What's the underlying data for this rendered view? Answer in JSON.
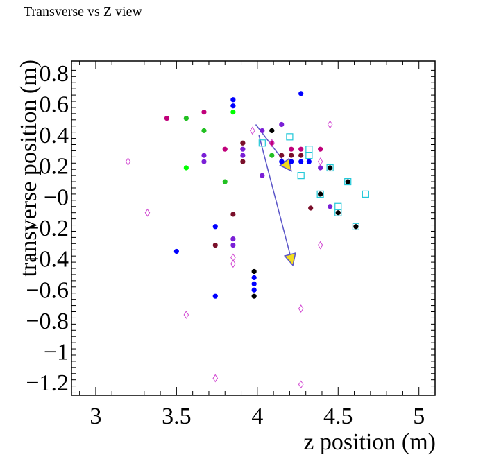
{
  "title": "Transverse vs Z view",
  "colors": {
    "frame": "#000000",
    "arrow": "#5b55c8",
    "arrow_head": "#f2dc1c",
    "hollow_diamond": "#d24ad2",
    "hollow_square": "#22c8d8"
  },
  "chart_data": {
    "type": "scatter",
    "title": "Transverse vs Z view",
    "xlabel": "z position (m)",
    "ylabel": "transverse position (m)",
    "xlim": [
      2.85,
      5.1
    ],
    "ylim": [
      -1.28,
      0.88
    ],
    "xticks": [
      3,
      3.5,
      4,
      4.5,
      5
    ],
    "xtick_labels": [
      "3",
      "3.5",
      "4",
      "4.5",
      "5"
    ],
    "yticks": [
      0.8,
      0.6,
      0.4,
      0.2,
      0,
      -0.2,
      -0.4,
      -0.6,
      -0.8,
      -1,
      -1.2
    ],
    "ytick_labels": [
      "0.8",
      "0.6",
      "0.4",
      "0.2",
      "−0",
      "−0.2",
      "−0.4",
      "−0.6",
      "−0.8",
      "−1",
      "−1.2"
    ],
    "grid": false,
    "series": [
      {
        "marker": "filled-circle",
        "color": "#0000ff",
        "points": [
          [
            3.85,
            0.63
          ],
          [
            3.85,
            0.59
          ],
          [
            4.27,
            0.67
          ],
          [
            3.74,
            -0.19
          ],
          [
            3.5,
            -0.35
          ],
          [
            3.98,
            -0.52
          ],
          [
            3.98,
            -0.56
          ],
          [
            3.98,
            -0.6
          ],
          [
            3.74,
            -0.64
          ],
          [
            4.15,
            0.23
          ],
          [
            4.21,
            0.23
          ],
          [
            4.27,
            0.23
          ],
          [
            4.32,
            0.23
          ]
        ]
      },
      {
        "marker": "filled-circle",
        "color": "#7a1fd6",
        "points": [
          [
            3.67,
            0.27
          ],
          [
            3.67,
            0.23
          ],
          [
            3.91,
            0.31
          ],
          [
            3.91,
            0.27
          ],
          [
            3.85,
            -0.27
          ],
          [
            3.85,
            -0.31
          ],
          [
            4.03,
            0.43
          ],
          [
            4.03,
            0.14
          ],
          [
            4.15,
            0.47
          ],
          [
            4.45,
            -0.06
          ],
          [
            4.39,
            0.19
          ]
        ]
      },
      {
        "marker": "filled-circle",
        "color": "#c0007a",
        "points": [
          [
            3.44,
            0.51
          ],
          [
            3.67,
            0.55
          ],
          [
            3.8,
            0.31
          ],
          [
            4.21,
            0.31
          ],
          [
            4.27,
            0.31
          ],
          [
            4.39,
            0.31
          ],
          [
            4.09,
            0.35
          ]
        ]
      },
      {
        "marker": "filled-circle",
        "color": "#7a0f2a",
        "points": [
          [
            3.74,
            -0.31
          ],
          [
            3.85,
            -0.11
          ],
          [
            3.91,
            0.35
          ],
          [
            3.91,
            0.23
          ],
          [
            4.15,
            0.27
          ],
          [
            4.27,
            0.27
          ],
          [
            4.33,
            -0.07
          ],
          [
            4.21,
            0.27
          ]
        ]
      },
      {
        "marker": "filled-circle",
        "color": "#22c022",
        "points": [
          [
            3.56,
            0.51
          ],
          [
            3.67,
            0.43
          ],
          [
            3.8,
            0.1
          ],
          [
            4.09,
            0.27
          ]
        ]
      },
      {
        "marker": "filled-circle",
        "color": "#00ff00",
        "points": [
          [
            3.85,
            0.55
          ],
          [
            3.56,
            0.19
          ]
        ]
      },
      {
        "marker": "filled-circle",
        "color": "#000000",
        "points": [
          [
            3.98,
            -0.48
          ],
          [
            3.98,
            -0.64
          ],
          [
            4.09,
            0.43
          ],
          [
            4.45,
            0.19
          ],
          [
            4.56,
            0.1
          ],
          [
            4.39,
            0.02
          ],
          [
            4.5,
            -0.1
          ],
          [
            4.61,
            -0.19
          ]
        ]
      },
      {
        "marker": "open-square",
        "color": "#22c8d8",
        "points": [
          [
            4.03,
            0.35
          ],
          [
            4.2,
            0.39
          ],
          [
            4.32,
            0.31
          ],
          [
            4.32,
            0.27
          ],
          [
            4.27,
            0.14
          ],
          [
            4.45,
            0.19
          ],
          [
            4.56,
            0.1
          ],
          [
            4.39,
            0.02
          ],
          [
            4.5,
            -0.06
          ],
          [
            4.5,
            -0.1
          ],
          [
            4.61,
            -0.19
          ],
          [
            4.67,
            0.02
          ]
        ]
      },
      {
        "marker": "open-diamond",
        "color": "#d24ad2",
        "points": [
          [
            3.2,
            0.23
          ],
          [
            3.32,
            -0.1
          ],
          [
            3.56,
            -0.76
          ],
          [
            3.74,
            -1.17
          ],
          [
            3.85,
            -0.39
          ],
          [
            3.85,
            -0.43
          ],
          [
            3.97,
            0.43
          ],
          [
            4.09,
            0.35
          ],
          [
            4.39,
            0.23
          ],
          [
            4.39,
            -0.31
          ],
          [
            4.45,
            0.47
          ],
          [
            4.27,
            -0.72
          ],
          [
            4.27,
            -1.21
          ]
        ]
      }
    ],
    "arrows": [
      {
        "from": [
          3.99,
          0.47
        ],
        "to": [
          4.21,
          0.17
        ]
      },
      {
        "from": [
          4.01,
          0.4
        ],
        "to": [
          4.22,
          -0.44
        ]
      }
    ]
  }
}
